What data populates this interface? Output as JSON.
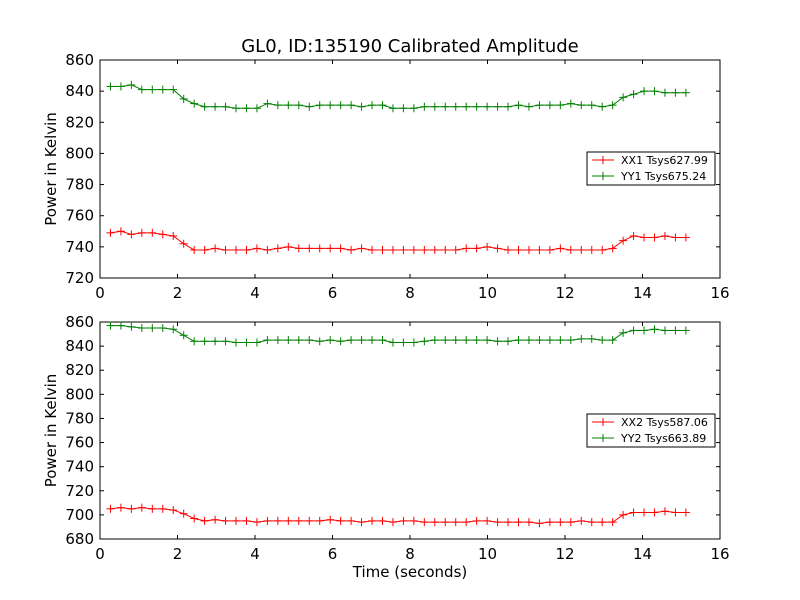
{
  "title": "GL0, ID:135190 Calibrated Amplitude",
  "colors": {
    "xx": "#ff0000",
    "yy": "#008000"
  },
  "chart_data": [
    {
      "type": "line",
      "title": "GL0, ID:135190 Calibrated Amplitude",
      "xlabel": "",
      "ylabel": "Power in Kelvin",
      "xlim": [
        0,
        16
      ],
      "ylim": [
        720,
        860
      ],
      "xticks": [
        0,
        2,
        4,
        6,
        8,
        10,
        12,
        14,
        16
      ],
      "yticks": [
        720,
        740,
        760,
        780,
        800,
        820,
        840,
        860
      ],
      "grid": false,
      "legend": "center-right",
      "x": [
        0.27,
        0.54,
        0.81,
        1.08,
        1.35,
        1.62,
        1.89,
        2.16,
        2.43,
        2.7,
        2.97,
        3.24,
        3.51,
        3.78,
        4.05,
        4.32,
        4.59,
        4.86,
        5.13,
        5.4,
        5.67,
        5.94,
        6.21,
        6.48,
        6.75,
        7.02,
        7.29,
        7.56,
        7.83,
        8.1,
        8.37,
        8.64,
        8.91,
        9.18,
        9.45,
        9.72,
        9.99,
        10.26,
        10.53,
        10.8,
        11.07,
        11.34,
        11.61,
        11.88,
        12.15,
        12.42,
        12.69,
        12.96,
        13.23,
        13.5,
        13.77,
        14.04,
        14.31,
        14.58,
        14.85,
        15.12
      ],
      "series": [
        {
          "name": "XX1 Tsys627.99",
          "color": "#ff0000",
          "values": [
            749,
            750,
            748,
            749,
            749,
            748,
            747,
            742,
            738,
            738,
            739,
            738,
            738,
            738,
            739,
            738,
            739,
            740,
            739,
            739,
            739,
            739,
            739,
            738,
            739,
            738,
            738,
            738,
            738,
            738,
            738,
            738,
            738,
            738,
            739,
            739,
            740,
            739,
            738,
            738,
            738,
            738,
            738,
            739,
            738,
            738,
            738,
            738,
            739,
            744,
            747,
            746,
            746,
            747,
            746,
            746
          ]
        },
        {
          "name": "YY1 Tsys675.24",
          "color": "#008000",
          "values": [
            843,
            843,
            844,
            841,
            841,
            841,
            841,
            835,
            832,
            830,
            830,
            830,
            829,
            829,
            829,
            832,
            831,
            831,
            831,
            830,
            831,
            831,
            831,
            831,
            830,
            831,
            831,
            829,
            829,
            829,
            830,
            830,
            830,
            830,
            830,
            830,
            830,
            830,
            830,
            831,
            830,
            831,
            831,
            831,
            832,
            831,
            831,
            830,
            831,
            836,
            838,
            840,
            840,
            839,
            839,
            839
          ]
        }
      ]
    },
    {
      "type": "line",
      "title": "",
      "xlabel": "Time (seconds)",
      "ylabel": "Power in Kelvin",
      "xlim": [
        0,
        16
      ],
      "ylim": [
        680,
        860
      ],
      "xticks": [
        0,
        2,
        4,
        6,
        8,
        10,
        12,
        14,
        16
      ],
      "yticks": [
        680,
        700,
        720,
        740,
        760,
        780,
        800,
        820,
        840,
        860
      ],
      "grid": false,
      "legend": "center-right",
      "x": [
        0.27,
        0.54,
        0.81,
        1.08,
        1.35,
        1.62,
        1.89,
        2.16,
        2.43,
        2.7,
        2.97,
        3.24,
        3.51,
        3.78,
        4.05,
        4.32,
        4.59,
        4.86,
        5.13,
        5.4,
        5.67,
        5.94,
        6.21,
        6.48,
        6.75,
        7.02,
        7.29,
        7.56,
        7.83,
        8.1,
        8.37,
        8.64,
        8.91,
        9.18,
        9.45,
        9.72,
        9.99,
        10.26,
        10.53,
        10.8,
        11.07,
        11.34,
        11.61,
        11.88,
        12.15,
        12.42,
        12.69,
        12.96,
        13.23,
        13.5,
        13.77,
        14.04,
        14.31,
        14.58,
        14.85,
        15.12
      ],
      "series": [
        {
          "name": "XX2 Tsys587.06",
          "color": "#ff0000",
          "values": [
            705,
            706,
            705,
            706,
            705,
            705,
            704,
            701,
            697,
            695,
            696,
            695,
            695,
            695,
            694,
            695,
            695,
            695,
            695,
            695,
            695,
            696,
            695,
            695,
            694,
            695,
            695,
            694,
            695,
            695,
            694,
            694,
            694,
            694,
            694,
            695,
            695,
            694,
            694,
            694,
            694,
            693,
            694,
            694,
            694,
            695,
            694,
            694,
            694,
            700,
            702,
            702,
            702,
            703,
            702,
            702
          ]
        },
        {
          "name": "YY2 Tsys663.89",
          "color": "#008000",
          "values": [
            857,
            857,
            856,
            855,
            855,
            855,
            854,
            849,
            844,
            844,
            844,
            844,
            843,
            843,
            843,
            845,
            845,
            845,
            845,
            845,
            844,
            845,
            844,
            845,
            845,
            845,
            845,
            843,
            843,
            843,
            844,
            845,
            845,
            845,
            845,
            845,
            845,
            844,
            844,
            845,
            845,
            845,
            845,
            845,
            845,
            846,
            846,
            845,
            845,
            851,
            853,
            853,
            854,
            853,
            853,
            853
          ]
        }
      ]
    }
  ]
}
